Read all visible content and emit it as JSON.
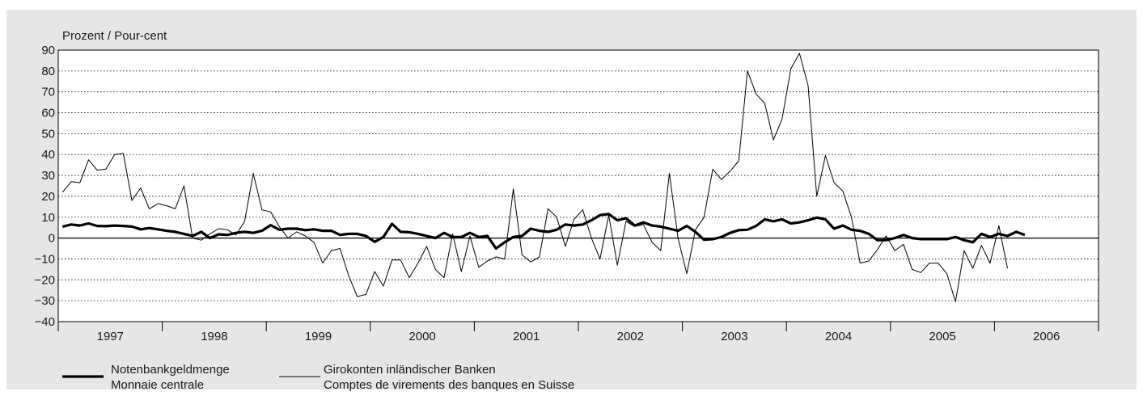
{
  "chart_data": {
    "type": "line",
    "title": "",
    "ylabel": "Prozent / Pour-cent",
    "xlabel": "",
    "ylim": [
      -40,
      90
    ],
    "yticks": [
      -40,
      -30,
      -20,
      -10,
      0,
      10,
      20,
      30,
      40,
      50,
      60,
      70,
      80,
      90
    ],
    "x_start_year": 1997,
    "years": [
      "1997",
      "1998",
      "1999",
      "2000",
      "2001",
      "2002",
      "2003",
      "2004",
      "2005",
      "2006"
    ],
    "grid": true,
    "legend_position": "bottom-left",
    "series": [
      {
        "name": "Notenbankgeldmenge",
        "name_fr": "Monnaie centrale",
        "style": "thick",
        "color": "#000000",
        "start_month": 1,
        "values": [
          5.5,
          6.5,
          6.0,
          7.0,
          5.8,
          5.7,
          6.0,
          5.8,
          5.5,
          4.2,
          4.8,
          4.2,
          3.5,
          3.0,
          2.0,
          1.0,
          3.0,
          0.0,
          1.8,
          1.5,
          2.5,
          3.0,
          2.5,
          3.5,
          6.2,
          4.0,
          4.5,
          4.5,
          3.8,
          4.2,
          3.5,
          3.5,
          1.5,
          2.0,
          2.0,
          1.0,
          -1.8,
          0.5,
          6.8,
          3.0,
          2.8,
          2.0,
          1.0,
          0.0,
          2.5,
          0.5,
          0.5,
          2.5,
          0.5,
          1.0,
          -5.0,
          -2.0,
          0.5,
          1.0,
          4.5,
          3.5,
          3.0,
          4.0,
          6.5,
          6.0,
          6.5,
          8.5,
          11.0,
          11.5,
          8.5,
          9.5,
          6.0,
          7.5,
          6.0,
          5.5,
          4.5,
          3.5,
          5.8,
          3.0,
          -0.8,
          -0.5,
          0.5,
          2.5,
          3.8,
          4.0,
          5.8,
          9.0,
          8.0,
          9.0,
          7.0,
          7.5,
          8.5,
          9.8,
          9.0,
          4.5,
          6.0,
          4.0,
          3.5,
          2.0,
          -1.0,
          -1.0,
          0.0,
          1.5,
          0.0,
          -0.5,
          -0.5,
          -0.5,
          -0.5,
          0.5,
          -1.0,
          -2.0,
          2.0,
          0.5,
          2.0,
          1.0,
          3.0,
          1.5
        ]
      },
      {
        "name": "Girokonten inländischer Banken",
        "name_fr": "Comptes de virements des banques en Suisse",
        "style": "thin",
        "color": "#000000",
        "start_month": 1,
        "values": [
          22,
          27,
          26.5,
          37.5,
          32.5,
          33,
          40,
          40.5,
          18,
          24,
          14,
          16.5,
          15.5,
          14,
          25,
          0,
          -1,
          2,
          4.5,
          4,
          1.5,
          8,
          31,
          13.5,
          12.5,
          5.5,
          0,
          3,
          1,
          -2,
          -12,
          -6,
          -5,
          -18,
          -28,
          -27,
          -16,
          -23,
          -10.5,
          -10.5,
          -19,
          -12,
          -4,
          -15,
          -19,
          2,
          -16,
          1,
          -14,
          -11,
          -9,
          -10,
          23.5,
          -8,
          -11.5,
          -9,
          14,
          10,
          -4,
          9,
          13.5,
          0,
          -10,
          11,
          -13,
          8,
          5.5,
          6.5,
          -2,
          -6,
          31,
          0,
          -17,
          4,
          10,
          33,
          28,
          32,
          37,
          80,
          69,
          64.5,
          47,
          57,
          81,
          88.5,
          73,
          20,
          39.5,
          26.5,
          22.5,
          10,
          -12,
          -11,
          -5.5,
          1,
          -6,
          -3,
          -15,
          -16.5,
          -12,
          -12,
          -17,
          -30.5,
          -6,
          -14.5,
          -3.5,
          -12,
          6,
          -14.5
        ]
      }
    ]
  },
  "legend": {
    "thick": {
      "line1": "Notenbankgeldmenge",
      "line2": "Monnaie centrale"
    },
    "thin": {
      "line1": "Girokonten inländischer Banken",
      "line2": "Comptes de virements des banques en Suisse"
    }
  }
}
